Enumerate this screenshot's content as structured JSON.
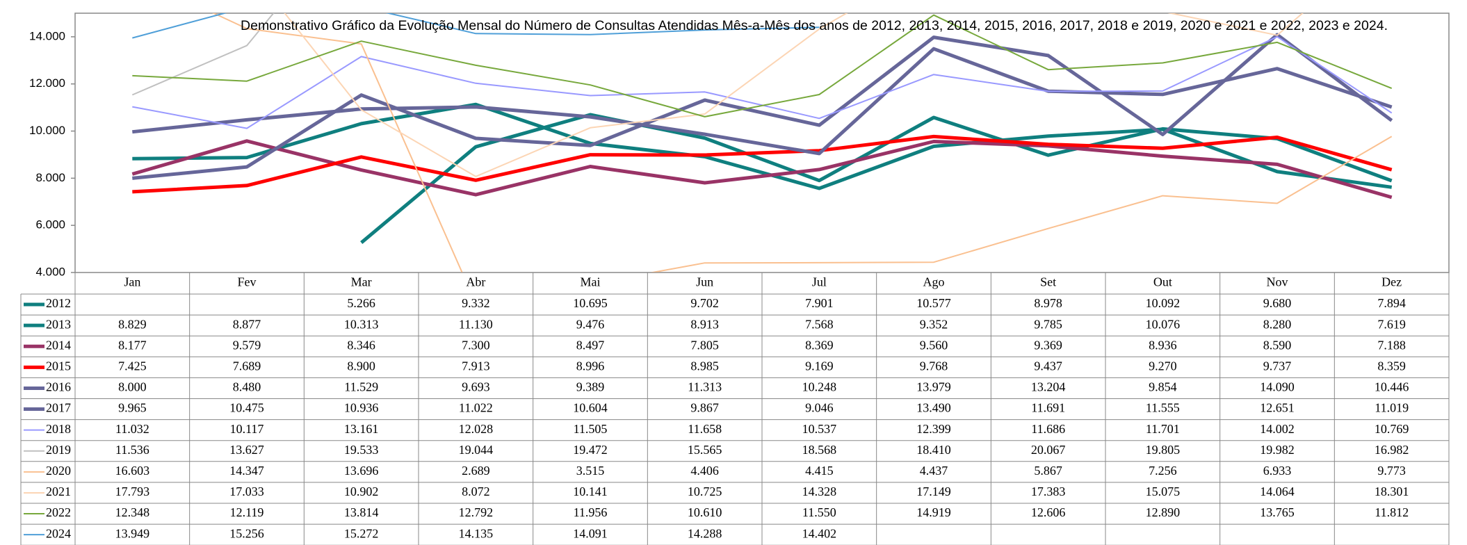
{
  "chart_data": {
    "type": "line",
    "title": "Demonstrativo Gráfico da Evolução Mensal do Número de Consultas Atendidas Mês-a-Mês dos anos de  2012, 2013, 2014, 2015, 2016, 2017, 2018 e 2019, 2020 e 2021 e 2022, 2023 e 2024.",
    "categories": [
      "Jan",
      "Fev",
      "Mar",
      "Abr",
      "Mai",
      "Jun",
      "Jul",
      "Ago",
      "Set",
      "Out",
      "Nov",
      "Dez"
    ],
    "ylim": [
      4000,
      15000
    ],
    "yticks": [
      {
        "value": 4000,
        "label": "4.000"
      },
      {
        "value": 6000,
        "label": "6.000"
      },
      {
        "value": 8000,
        "label": "8.000"
      },
      {
        "value": 10000,
        "label": "10.000"
      },
      {
        "value": 12000,
        "label": "12.000"
      },
      {
        "value": 14000,
        "label": "14.000"
      }
    ],
    "series": [
      {
        "name": "2012",
        "color": "#0f7f7f",
        "values": [
          null,
          null,
          5266,
          9332,
          10695,
          9702,
          7901,
          10577,
          8978,
          10092,
          9680,
          7894
        ],
        "value_labels": [
          null,
          null,
          "5.266",
          "9.332",
          "10.695",
          "9.702",
          "7.901",
          "10.577",
          "8.978",
          "10.092",
          "9.680",
          "7.894"
        ]
      },
      {
        "name": "2013",
        "color": "#0f7f7f",
        "values": [
          8829,
          8877,
          10313,
          11130,
          9476,
          8913,
          7568,
          9352,
          9785,
          10076,
          8280,
          7619
        ],
        "value_labels": [
          "8.829",
          "8.877",
          "10.313",
          "11.130",
          "9.476",
          "8.913",
          "7.568",
          "9.352",
          "9.785",
          "10.076",
          "8.280",
          "7.619"
        ]
      },
      {
        "name": "2014",
        "color": "#993366",
        "values": [
          8177,
          9579,
          8346,
          7300,
          8497,
          7805,
          8369,
          9560,
          9369,
          8936,
          8590,
          7188
        ],
        "value_labels": [
          "8.177",
          "9.579",
          "8.346",
          "7.300",
          "8.497",
          "7.805",
          "8.369",
          "9.560",
          "9.369",
          "8.936",
          "8.590",
          "7.188"
        ]
      },
      {
        "name": "2015",
        "color": "#ff0000",
        "values": [
          7425,
          7689,
          8900,
          7913,
          8996,
          8985,
          9169,
          9768,
          9437,
          9270,
          9737,
          8359
        ],
        "value_labels": [
          "7.425",
          "7.689",
          "8.900",
          "7.913",
          "8.996",
          "8.985",
          "9.169",
          "9.768",
          "9.437",
          "9.270",
          "9.737",
          "8.359"
        ]
      },
      {
        "name": "2016",
        "color": "#666699",
        "values": [
          8000,
          8480,
          11529,
          9693,
          9389,
          11313,
          10248,
          13979,
          13204,
          9854,
          14090,
          10446
        ],
        "value_labels": [
          "8.000",
          "8.480",
          "11.529",
          "9.693",
          "9.389",
          "11.313",
          "10.248",
          "13.979",
          "13.204",
          "9.854",
          "14.090",
          "10.446"
        ]
      },
      {
        "name": "2017",
        "color": "#666699",
        "values": [
          9965,
          10475,
          10936,
          11022,
          10604,
          9867,
          9046,
          13490,
          11691,
          11555,
          12651,
          11019
        ],
        "value_labels": [
          "9.965",
          "10.475",
          "10.936",
          "11.022",
          "10.604",
          "9.867",
          "9.046",
          "13.490",
          "11.691",
          "11.555",
          "12.651",
          "11.019"
        ]
      },
      {
        "name": "2018",
        "color": "#9999ff",
        "values": [
          11032,
          10117,
          13161,
          12028,
          11505,
          11658,
          10537,
          12399,
          11686,
          11701,
          14002,
          10769
        ],
        "value_labels": [
          "11.032",
          "10.117",
          "13.161",
          "12.028",
          "11.505",
          "11.658",
          "10.537",
          "12.399",
          "11.686",
          "11.701",
          "14.002",
          "10.769"
        ]
      },
      {
        "name": "2019",
        "color": "#c0c0c0",
        "values": [
          11536,
          13627,
          19533,
          19044,
          19472,
          15565,
          18568,
          18410,
          20067,
          19805,
          19982,
          16982
        ],
        "value_labels": [
          "11.536",
          "13.627",
          "19.533",
          "19.044",
          "19.472",
          "15.565",
          "18.568",
          "18.410",
          "20.067",
          "19.805",
          "19.982",
          "16.982"
        ]
      },
      {
        "name": "2020",
        "color": "#fac090",
        "values": [
          16603,
          14347,
          13696,
          2689,
          3515,
          4406,
          4415,
          4437,
          5867,
          7256,
          6933,
          9773
        ],
        "value_labels": [
          "16.603",
          "14.347",
          "13.696",
          "2.689",
          "3.515",
          "4.406",
          "4.415",
          "4.437",
          "5.867",
          "7.256",
          "6.933",
          "9.773"
        ]
      },
      {
        "name": "2021",
        "color": "#fcd5b4",
        "values": [
          17793,
          17033,
          10902,
          8072,
          10141,
          10725,
          14328,
          17149,
          17383,
          15075,
          14064,
          18301
        ],
        "value_labels": [
          "17.793",
          "17.033",
          "10.902",
          "8.072",
          "10.141",
          "10.725",
          "14.328",
          "17.149",
          "17.383",
          "15.075",
          "14.064",
          "18.301"
        ]
      },
      {
        "name": "2022",
        "color": "#77a83c",
        "values": [
          12348,
          12119,
          13814,
          12792,
          11956,
          10610,
          11550,
          14919,
          12606,
          12890,
          13765,
          11812
        ],
        "value_labels": [
          "12.348",
          "12.119",
          "13.814",
          "12.792",
          "11.956",
          "10.610",
          "11.550",
          "14.919",
          "12.606",
          "12.890",
          "13.765",
          "11.812"
        ]
      },
      {
        "name": "2024",
        "color": "#4f9fd8",
        "values": [
          13949,
          15256,
          15272,
          14135,
          14091,
          14288,
          14402,
          null,
          null,
          null,
          null,
          null
        ],
        "value_labels": [
          "13.949",
          "15.256",
          "15.272",
          "14.135",
          "14.091",
          "14.288",
          "14.402",
          null,
          null,
          null,
          null,
          null
        ]
      }
    ]
  }
}
